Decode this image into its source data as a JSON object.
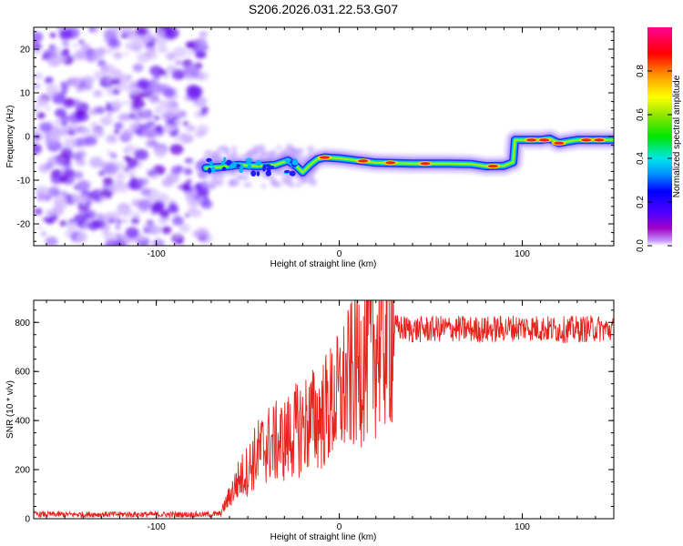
{
  "title": "S206.2026.031.22.53.G07",
  "colors": {
    "snr_line": "#e8231e",
    "noise_purple": "#6a00e0",
    "frame": "#000000"
  },
  "chart_data": [
    {
      "type": "heatmap",
      "title": "S206.2026.031.22.53.G07",
      "xlabel": "Height of straight line (km)",
      "ylabel": "Frequency (Hz)",
      "xlim": [
        -167,
        150
      ],
      "ylim": [
        -25,
        25
      ],
      "x_ticks": [
        -100,
        0,
        100
      ],
      "x_tick_labels": [
        "-100",
        "0",
        "100"
      ],
      "y_ticks": [
        -20,
        -10,
        0,
        10,
        20
      ],
      "y_tick_labels": [
        "-20",
        "-10",
        "0",
        "10",
        "20"
      ],
      "colorbar": {
        "label": "Normalized spectral amplitude",
        "range": [
          0,
          1
        ],
        "ticks": [
          0,
          0.2,
          0.4,
          0.6,
          0.8
        ],
        "tick_labels": [
          "0.0",
          "0.2",
          "0.4",
          "0.6",
          "0.8"
        ],
        "colormap": [
          "#a000c8",
          "#5000ff",
          "#0000ff",
          "#0096ff",
          "#00e6e6",
          "#00e600",
          "#96e600",
          "#ffff00",
          "#ff9600",
          "#ff0000",
          "#ff0096"
        ]
      },
      "noise_region_x": [
        -167,
        -73
      ],
      "signal_track": [
        {
          "x": -73,
          "f": -7.2
        },
        {
          "x": -65,
          "f": -7.0
        },
        {
          "x": -55,
          "f": -6.5
        },
        {
          "x": -45,
          "f": -6.8
        },
        {
          "x": -35,
          "f": -6.5
        },
        {
          "x": -28,
          "f": -5.5
        },
        {
          "x": -23,
          "f": -7.0
        },
        {
          "x": -20,
          "f": -8.2
        },
        {
          "x": -16,
          "f": -6.5
        },
        {
          "x": -12,
          "f": -5.2
        },
        {
          "x": -8,
          "f": -4.8
        },
        {
          "x": 0,
          "f": -5.0
        },
        {
          "x": 20,
          "f": -6.0
        },
        {
          "x": 40,
          "f": -6.2
        },
        {
          "x": 60,
          "f": -6.2
        },
        {
          "x": 72,
          "f": -6.3
        },
        {
          "x": 80,
          "f": -6.8
        },
        {
          "x": 90,
          "f": -6.7
        },
        {
          "x": 95,
          "f": -5.9
        },
        {
          "x": 96,
          "f": -0.8
        },
        {
          "x": 110,
          "f": -0.8
        },
        {
          "x": 115,
          "f": -0.5
        },
        {
          "x": 120,
          "f": -1.5
        },
        {
          "x": 130,
          "f": -0.8
        },
        {
          "x": 150,
          "f": -0.8
        }
      ]
    },
    {
      "type": "line",
      "xlabel": "Height of straight line (km)",
      "ylabel": "SNR (10 * v/v)",
      "xlim": [
        -167,
        150
      ],
      "ylim": [
        0,
        890
      ],
      "x_ticks": [
        -100,
        0,
        100
      ],
      "x_tick_labels": [
        "-100",
        "0",
        "100"
      ],
      "y_ticks": [
        0,
        200,
        400,
        600,
        800
      ],
      "y_tick_labels": [
        "0",
        "200",
        "400",
        "600",
        "800"
      ],
      "series": [
        {
          "name": "SNR",
          "x": [
            -167,
            -150,
            -120,
            -100,
            -80,
            -70,
            -65,
            -60,
            -55,
            -50,
            -45,
            -40,
            -35,
            -30,
            -25,
            -20,
            -15,
            -10,
            -5,
            0,
            5,
            10,
            15,
            20,
            25,
            30,
            40,
            60,
            80,
            100,
            120,
            140,
            150
          ],
          "values": [
            18,
            17,
            18,
            17,
            17,
            17,
            20,
            90,
            160,
            200,
            260,
            300,
            310,
            320,
            350,
            380,
            400,
            420,
            460,
            500,
            560,
            620,
            680,
            720,
            760,
            780,
            770,
            775,
            770,
            780,
            770,
            775,
            770
          ]
        }
      ]
    }
  ]
}
